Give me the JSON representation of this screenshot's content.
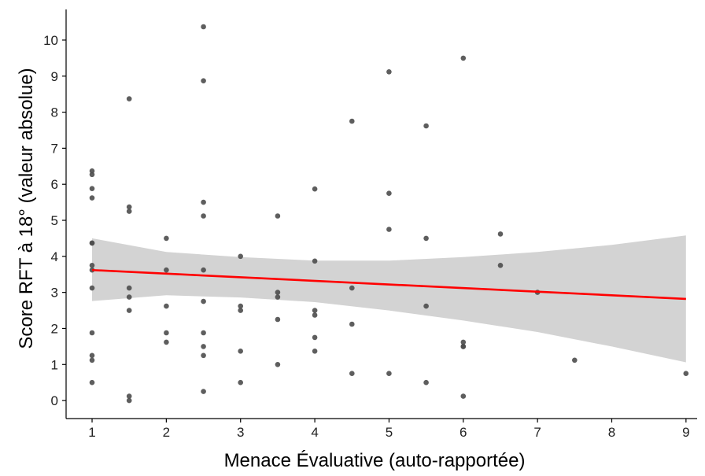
{
  "chart_data": {
    "type": "scatter",
    "title": "",
    "xlabel": "Menace Évaluative (auto-rapportée)",
    "ylabel": "Score RFT à 18° (valeur absolue)",
    "xlim": [
      0.65,
      9.15
    ],
    "ylim": [
      -0.5,
      10.85
    ],
    "x_ticks": [
      1,
      2,
      3,
      4,
      5,
      6,
      7,
      8,
      9
    ],
    "y_ticks": [
      0,
      1,
      2,
      3,
      4,
      5,
      6,
      7,
      8,
      9,
      10
    ],
    "grid": false,
    "legend": "none",
    "colors": {
      "points": "#4d4d4d",
      "fit_line": "#ff0000",
      "ci_band": "#d3d3d3",
      "axis": "#000000"
    },
    "points": [
      {
        "x": 1,
        "y": 6.37
      },
      {
        "x": 1,
        "y": 6.27
      },
      {
        "x": 1,
        "y": 5.88
      },
      {
        "x": 1,
        "y": 5.62
      },
      {
        "x": 1,
        "y": 4.37
      },
      {
        "x": 1,
        "y": 4.37
      },
      {
        "x": 1,
        "y": 3.75
      },
      {
        "x": 1,
        "y": 3.62
      },
      {
        "x": 1,
        "y": 3.12
      },
      {
        "x": 1,
        "y": 1.88
      },
      {
        "x": 1,
        "y": 1.25
      },
      {
        "x": 1,
        "y": 1.12
      },
      {
        "x": 1,
        "y": 0.5
      },
      {
        "x": 1.5,
        "y": 8.37
      },
      {
        "x": 1.5,
        "y": 5.37
      },
      {
        "x": 1.5,
        "y": 5.25
      },
      {
        "x": 1.5,
        "y": 3.12
      },
      {
        "x": 1.5,
        "y": 2.87
      },
      {
        "x": 1.5,
        "y": 2.5
      },
      {
        "x": 1.5,
        "y": 0.12
      },
      {
        "x": 1.5,
        "y": 0.0
      },
      {
        "x": 2,
        "y": 4.5
      },
      {
        "x": 2,
        "y": 3.62
      },
      {
        "x": 2,
        "y": 2.62
      },
      {
        "x": 2,
        "y": 1.88
      },
      {
        "x": 2,
        "y": 1.62
      },
      {
        "x": 2.5,
        "y": 10.37
      },
      {
        "x": 2.5,
        "y": 8.87
      },
      {
        "x": 2.5,
        "y": 5.5
      },
      {
        "x": 2.5,
        "y": 5.12
      },
      {
        "x": 2.5,
        "y": 3.62
      },
      {
        "x": 2.5,
        "y": 2.75
      },
      {
        "x": 2.5,
        "y": 1.88
      },
      {
        "x": 2.5,
        "y": 1.5
      },
      {
        "x": 2.5,
        "y": 1.25
      },
      {
        "x": 2.5,
        "y": 0.25
      },
      {
        "x": 3,
        "y": 4.0
      },
      {
        "x": 3,
        "y": 2.62
      },
      {
        "x": 3,
        "y": 2.5
      },
      {
        "x": 3,
        "y": 1.37
      },
      {
        "x": 3,
        "y": 0.5
      },
      {
        "x": 3.5,
        "y": 5.12
      },
      {
        "x": 3.5,
        "y": 3.0
      },
      {
        "x": 3.5,
        "y": 2.87
      },
      {
        "x": 3.5,
        "y": 2.25
      },
      {
        "x": 3.5,
        "y": 1.0
      },
      {
        "x": 4,
        "y": 5.87
      },
      {
        "x": 4,
        "y": 3.87
      },
      {
        "x": 4,
        "y": 2.5
      },
      {
        "x": 4,
        "y": 2.37
      },
      {
        "x": 4,
        "y": 1.75
      },
      {
        "x": 4,
        "y": 1.37
      },
      {
        "x": 4.5,
        "y": 7.75
      },
      {
        "x": 4.5,
        "y": 3.12
      },
      {
        "x": 4.5,
        "y": 2.12
      },
      {
        "x": 4.5,
        "y": 0.75
      },
      {
        "x": 5,
        "y": 9.12
      },
      {
        "x": 5,
        "y": 5.75
      },
      {
        "x": 5,
        "y": 4.75
      },
      {
        "x": 5,
        "y": 0.75
      },
      {
        "x": 5.5,
        "y": 7.62
      },
      {
        "x": 5.5,
        "y": 4.5
      },
      {
        "x": 5.5,
        "y": 2.62
      },
      {
        "x": 5.5,
        "y": 0.5
      },
      {
        "x": 6,
        "y": 9.5
      },
      {
        "x": 6,
        "y": 1.62
      },
      {
        "x": 6,
        "y": 1.5
      },
      {
        "x": 6,
        "y": 1.5
      },
      {
        "x": 6,
        "y": 0.12
      },
      {
        "x": 6.5,
        "y": 4.62
      },
      {
        "x": 6.5,
        "y": 3.75
      },
      {
        "x": 7,
        "y": 3.0
      },
      {
        "x": 7.5,
        "y": 1.12
      },
      {
        "x": 9,
        "y": 0.75
      }
    ],
    "fit_line": {
      "x": [
        1,
        9
      ],
      "y": [
        3.62,
        2.82
      ]
    },
    "confidence_band": {
      "x": [
        1,
        2,
        3,
        4,
        5,
        6,
        7,
        8,
        9
      ],
      "upper": [
        4.5,
        4.12,
        3.98,
        3.88,
        3.88,
        3.98,
        4.12,
        4.32,
        4.58
      ],
      "lower": [
        2.76,
        2.92,
        2.86,
        2.73,
        2.5,
        2.22,
        1.9,
        1.5,
        1.06
      ]
    }
  }
}
